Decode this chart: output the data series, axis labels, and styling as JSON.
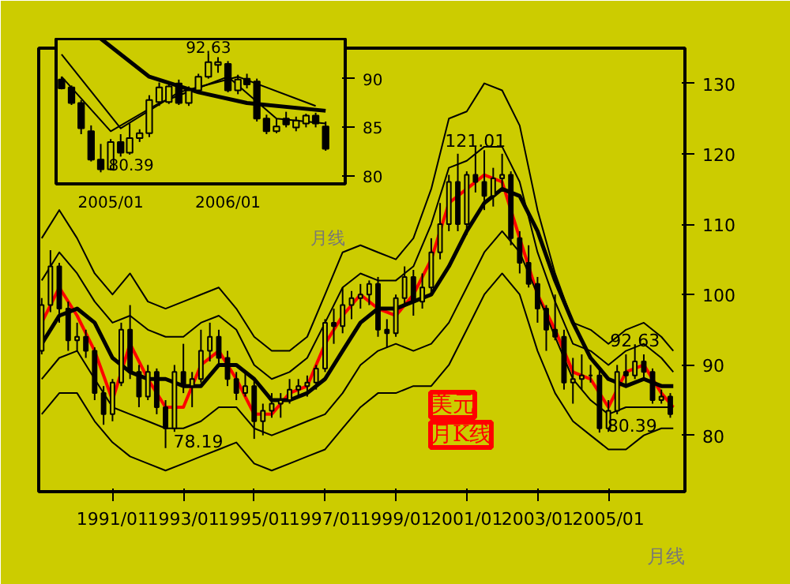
{
  "chart_data": [
    {
      "type": "candlestick",
      "x": [
        "2004-08",
        "2004-09",
        "2004-10",
        "2004-11",
        "2004-12",
        "2005-01",
        "2005-02",
        "2005-03",
        "2005-04",
        "2005-05",
        "2005-06",
        "2005-07",
        "2005-08",
        "2005-09",
        "2005-10",
        "2005-11",
        "2005-12",
        "2006-01",
        "2006-02",
        "2006-03",
        "2006-04",
        "2006-05",
        "2006-06",
        "2006-07",
        "2006-08",
        "2006-09",
        "2006-10",
        "2006-11"
      ],
      "ohlc": [
        [
          89.9,
          90.2,
          88.9,
          89.0
        ],
        [
          89.1,
          89.3,
          87.3,
          87.5
        ],
        [
          87.5,
          87.8,
          84.3,
          84.9
        ],
        [
          84.6,
          85.2,
          81.5,
          81.7
        ],
        [
          81.7,
          83.3,
          80.39,
          80.7
        ],
        [
          80.7,
          83.8,
          80.6,
          83.5
        ],
        [
          83.5,
          84.3,
          82.0,
          82.4
        ],
        [
          82.4,
          85.4,
          82.2,
          83.9
        ],
        [
          83.9,
          84.8,
          83.5,
          84.4
        ],
        [
          84.4,
          88.3,
          84.0,
          87.8
        ],
        [
          87.6,
          89.6,
          87.2,
          89.1
        ],
        [
          87.6,
          89.6,
          87.4,
          89.2
        ],
        [
          89.5,
          89.9,
          87.3,
          87.5
        ],
        [
          87.5,
          89.2,
          87.2,
          88.8
        ],
        [
          88.8,
          90.5,
          88.5,
          90.2
        ],
        [
          90.2,
          92.63,
          90.0,
          91.7
        ],
        [
          91.4,
          92.2,
          90.6,
          91.7
        ],
        [
          91.5,
          91.8,
          88.6,
          88.8
        ],
        [
          88.8,
          90.4,
          88.4,
          89.9
        ],
        [
          90.0,
          90.5,
          89.0,
          89.4
        ],
        [
          89.7,
          90.0,
          85.6,
          85.9
        ],
        [
          85.9,
          86.3,
          84.3,
          84.6
        ],
        [
          84.6,
          85.9,
          84.4,
          85.1
        ],
        [
          85.9,
          86.6,
          85.0,
          85.3
        ],
        [
          85.0,
          86.1,
          84.6,
          85.7
        ],
        [
          85.4,
          86.4,
          85.0,
          86.2
        ],
        [
          86.2,
          86.5,
          85.0,
          85.4
        ],
        [
          85.1,
          85.6,
          82.6,
          82.8
        ]
      ],
      "series": [
        {
          "type": "line",
          "color": "#000000",
          "x": [
            "2004-12",
            "2005-05",
            "2005-10",
            "2006-03",
            "2006-11"
          ],
          "values": [
            94.1,
            90.2,
            88.6,
            87.5,
            86.7
          ]
        },
        {
          "type": "line",
          "color": "#000000",
          "x": [
            "2004-08",
            "2005-02",
            "2005-08",
            "2006-02",
            "2006-10"
          ],
          "values": [
            92.5,
            84.9,
            88.6,
            90.2,
            87.2
          ]
        },
        {
          "type": "line",
          "color": "#000000",
          "x": [
            "2004-08",
            "2005-01",
            "2005-06",
            "2006-01",
            "2006-06",
            "2006-11"
          ],
          "values": [
            90.2,
            84.6,
            87.5,
            90.2,
            85.9,
            85.4
          ]
        }
      ],
      "xlim": [
        "2004-07-15",
        "2007-01"
      ],
      "ylim": [
        79.2,
        94.1
      ],
      "yticks": [
        80,
        85,
        90
      ],
      "xticks": [
        {
          "value": "2005-01",
          "label": "2005/01"
        },
        {
          "value": "2006-01",
          "label": "2006/01"
        }
      ],
      "annotations": [
        {
          "text": "92.63",
          "x": "2005-11",
          "y": 92.63
        },
        {
          "text": "80.39",
          "x": "2004-12",
          "y": 80.39
        },
        "月线"
      ],
      "grid": false
    },
    {
      "type": "candlestick",
      "x": [
        "1989-01",
        "1989-04",
        "1989-07",
        "1989-10",
        "1990-01",
        "1990-04",
        "1990-07",
        "1990-10",
        "1991-01",
        "1991-04",
        "1991-07",
        "1991-10",
        "1992-01",
        "1992-04",
        "1992-07",
        "1992-10",
        "1993-01",
        "1993-04",
        "1993-07",
        "1993-10",
        "1994-01",
        "1994-04",
        "1994-07",
        "1994-10",
        "1995-01",
        "1995-04",
        "1995-07",
        "1995-10",
        "1996-01",
        "1996-04",
        "1996-07",
        "1996-10",
        "1997-01",
        "1997-04",
        "1997-07",
        "1997-10",
        "1998-01",
        "1998-04",
        "1998-07",
        "1998-10",
        "1999-01",
        "1999-04",
        "1999-07",
        "1999-10",
        "2000-01",
        "2000-04",
        "2000-07",
        "2000-10",
        "2001-01",
        "2001-04",
        "2001-07",
        "2001-10",
        "2002-01",
        "2002-04",
        "2002-07",
        "2002-10",
        "2003-01",
        "2003-04",
        "2003-07",
        "2003-10",
        "2004-01",
        "2004-04",
        "2004-07",
        "2004-10",
        "2005-01",
        "2005-04",
        "2005-07",
        "2005-10",
        "2006-01",
        "2006-04",
        "2006-07",
        "2006-10"
      ],
      "ohlc": [
        [
          92.0,
          99.5,
          91.5,
          98.5
        ],
        [
          98.5,
          106.3,
          97.5,
          104.0
        ],
        [
          104.0,
          104.5,
          96.0,
          98.0
        ],
        [
          98.0,
          99.0,
          92.0,
          93.5
        ],
        [
          93.5,
          96.0,
          92.0,
          94.0
        ],
        [
          94.0,
          95.0,
          91.0,
          92.0
        ],
        [
          92.0,
          92.5,
          85.0,
          86.0
        ],
        [
          86.0,
          87.0,
          81.5,
          83.0
        ],
        [
          83.0,
          88.0,
          82.0,
          87.5
        ],
        [
          87.5,
          96.0,
          87.0,
          95.0
        ],
        [
          95.0,
          98.5,
          88.0,
          89.0
        ],
        [
          89.0,
          90.0,
          84.0,
          85.5
        ],
        [
          85.5,
          90.0,
          85.0,
          89.0
        ],
        [
          89.0,
          89.5,
          83.0,
          84.0
        ],
        [
          84.0,
          85.0,
          78.19,
          81.0
        ],
        [
          81.0,
          90.0,
          80.5,
          89.0
        ],
        [
          89.0,
          93.0,
          86.0,
          87.0
        ],
        [
          87.0,
          89.0,
          84.0,
          88.0
        ],
        [
          88.0,
          95.0,
          87.5,
          92.0
        ],
        [
          92.0,
          96.0,
          90.5,
          94.0
        ],
        [
          94.0,
          95.0,
          90.0,
          91.0
        ],
        [
          91.0,
          92.0,
          87.0,
          88.0
        ],
        [
          88.0,
          89.0,
          85.0,
          86.0
        ],
        [
          86.0,
          89.0,
          85.5,
          87.0
        ],
        [
          87.0,
          88.0,
          79.5,
          82.0
        ],
        [
          82.0,
          84.5,
          80.0,
          83.5
        ],
        [
          83.5,
          86.0,
          82.5,
          84.5
        ],
        [
          84.5,
          86.0,
          82.5,
          85.0
        ],
        [
          85.0,
          88.0,
          84.5,
          86.5
        ],
        [
          86.5,
          88.0,
          85.5,
          87.0
        ],
        [
          87.0,
          88.5,
          85.5,
          87.5
        ],
        [
          87.5,
          90.0,
          86.5,
          89.5
        ],
        [
          89.5,
          96.5,
          89.0,
          96.0
        ],
        [
          96.0,
          98.0,
          93.0,
          95.5
        ],
        [
          95.5,
          101.0,
          94.5,
          98.5
        ],
        [
          98.5,
          100.5,
          96.5,
          99.5
        ],
        [
          99.5,
          101.5,
          98.0,
          100.0
        ],
        [
          100.0,
          102.0,
          98.5,
          101.5
        ],
        [
          101.5,
          102.5,
          94.0,
          95.0
        ],
        [
          95.0,
          96.5,
          92.5,
          94.5
        ],
        [
          94.5,
          100.0,
          94.0,
          99.5
        ],
        [
          99.5,
          104.0,
          98.5,
          102.5
        ],
        [
          102.5,
          103.5,
          97.0,
          99.0
        ],
        [
          99.0,
          103.0,
          98.0,
          101.0
        ],
        [
          101.0,
          108.0,
          100.0,
          106.0
        ],
        [
          106.0,
          113.0,
          105.0,
          110.0
        ],
        [
          110.0,
          117.0,
          109.0,
          116.0
        ],
        [
          116.0,
          120.0,
          109.0,
          110.0
        ],
        [
          110.0,
          117.5,
          108.5,
          117.0
        ],
        [
          117.0,
          121.01,
          114.5,
          116.0
        ],
        [
          116.0,
          120.5,
          112.0,
          114.0
        ],
        [
          114.0,
          118.0,
          112.5,
          116.5
        ],
        [
          116.5,
          120.0,
          115.0,
          117.0
        ],
        [
          117.0,
          117.5,
          107.0,
          108.0
        ],
        [
          108.0,
          109.0,
          103.0,
          104.5
        ],
        [
          104.5,
          107.0,
          101.0,
          101.5
        ],
        [
          101.5,
          102.5,
          96.0,
          98.0
        ],
        [
          98.0,
          98.5,
          92.0,
          95.0
        ],
        [
          95.0,
          100.0,
          93.5,
          94.0
        ],
        [
          94.0,
          95.0,
          86.5,
          87.5
        ],
        [
          87.5,
          91.0,
          84.5,
          88.0
        ],
        [
          88.0,
          91.5,
          86.5,
          88.5
        ],
        [
          88.5,
          90.0,
          87.5,
          88.5
        ],
        [
          88.5,
          89.5,
          80.39,
          81.0
        ],
        [
          81.0,
          85.0,
          80.5,
          83.5
        ],
        [
          83.5,
          90.0,
          83.0,
          89.0
        ],
        [
          89.0,
          91.5,
          87.0,
          88.5
        ],
        [
          88.5,
          92.63,
          88.0,
          90.5
        ],
        [
          90.5,
          91.5,
          88.0,
          89.0
        ],
        [
          89.0,
          89.5,
          84.5,
          85.0
        ],
        [
          85.0,
          86.5,
          84.5,
          85.5
        ],
        [
          85.5,
          86.0,
          82.5,
          83.0
        ]
      ],
      "series": [
        {
          "type": "line",
          "color": "#ff0000",
          "x": [
            "1989-01",
            "1989-07",
            "1990-01",
            "1990-07",
            "1991-01",
            "1991-07",
            "1992-01",
            "1992-07",
            "1993-01",
            "1993-07",
            "1994-01",
            "1994-07",
            "1995-01",
            "1995-07",
            "1996-01",
            "1996-07",
            "1997-01",
            "1997-07",
            "1998-01",
            "1998-07",
            "1999-01",
            "1999-07",
            "2000-01",
            "2000-07",
            "2001-01",
            "2001-07",
            "2002-01",
            "2002-07",
            "2003-01",
            "2003-07",
            "2004-01",
            "2004-07",
            "2005-01",
            "2005-07",
            "2006-01",
            "2006-07",
            "2006-11"
          ],
          "values": [
            96,
            101,
            97,
            92,
            85,
            93,
            88,
            84,
            84,
            90,
            92,
            88,
            83,
            83,
            86,
            87,
            93,
            97,
            100,
            98,
            97,
            100,
            105,
            113,
            115,
            117,
            116,
            108,
            100,
            95,
            89,
            88,
            84,
            89,
            90,
            86,
            84
          ]
        },
        {
          "type": "line",
          "color": "#000000",
          "x": [
            "1989-01",
            "1989-07",
            "1990-01",
            "1990-07",
            "1991-01",
            "1991-07",
            "1992-01",
            "1992-07",
            "1993-01",
            "1993-07",
            "1994-01",
            "1994-07",
            "1995-01",
            "1995-07",
            "1996-01",
            "1996-07",
            "1997-01",
            "1997-07",
            "1998-01",
            "1998-07",
            "1999-01",
            "1999-07",
            "2000-01",
            "2000-07",
            "2001-01",
            "2001-07",
            "2002-01",
            "2002-07",
            "2003-01",
            "2003-07",
            "2004-01",
            "2004-07",
            "2005-01",
            "2005-07",
            "2006-01",
            "2006-07",
            "2006-11"
          ],
          "values": [
            93,
            97,
            98,
            96,
            91,
            89,
            88,
            88,
            87,
            87,
            90,
            90,
            88,
            85,
            85,
            86,
            88,
            92,
            96,
            98,
            98,
            99,
            100,
            104,
            109,
            113,
            115,
            114,
            109,
            102,
            96,
            91,
            88,
            87,
            88,
            87,
            87
          ]
        },
        {
          "type": "line",
          "color": "#000000",
          "x": [
            "1989-01",
            "1989-07",
            "1990-01",
            "1990-07",
            "1991-01",
            "1991-07",
            "1992-01",
            "1992-07",
            "1993-01",
            "1993-07",
            "1994-01",
            "1994-07",
            "1995-01",
            "1995-07",
            "1996-01",
            "1996-07",
            "1997-01",
            "1997-07",
            "1998-01",
            "1998-07",
            "1999-01",
            "1999-07",
            "2000-01",
            "2000-07",
            "2001-01",
            "2001-07",
            "2002-01",
            "2002-07",
            "2003-01",
            "2003-07",
            "2004-01",
            "2004-07",
            "2005-01",
            "2005-07",
            "2006-01",
            "2006-07",
            "2006-11"
          ],
          "values": [
            108,
            112,
            108,
            103,
            100,
            103,
            99,
            98,
            99,
            100,
            101,
            98,
            94,
            92,
            92,
            94,
            100,
            106,
            107,
            106,
            105,
            108,
            115,
            125,
            126,
            130,
            129,
            124,
            112,
            103,
            96,
            95,
            93,
            95,
            96,
            94,
            92
          ]
        },
        {
          "type": "line",
          "color": "#000000",
          "x": [
            "1989-01",
            "1989-07",
            "1990-01",
            "1990-07",
            "1991-01",
            "1991-07",
            "1992-01",
            "1992-07",
            "1993-01",
            "1993-07",
            "1994-01",
            "1994-07",
            "1995-01",
            "1995-07",
            "1996-01",
            "1996-07",
            "1997-01",
            "1997-07",
            "1998-01",
            "1998-07",
            "1999-01",
            "1999-07",
            "2000-01",
            "2000-07",
            "2001-01",
            "2001-07",
            "2002-01",
            "2002-07",
            "2003-01",
            "2003-07",
            "2004-01",
            "2004-07",
            "2005-01",
            "2005-07",
            "2006-01",
            "2006-07",
            "2006-11"
          ],
          "values": [
            102,
            106,
            103,
            99,
            96,
            97,
            95,
            94,
            94,
            96,
            97,
            95,
            90,
            88,
            89,
            91,
            96,
            101,
            103,
            102,
            102,
            104,
            110,
            118,
            119,
            121,
            121,
            116,
            106,
            99,
            93,
            92,
            90,
            92,
            93,
            91,
            89
          ]
        },
        {
          "type": "line",
          "color": "#000000",
          "x": [
            "1989-01",
            "1989-07",
            "1990-01",
            "1990-07",
            "1991-01",
            "1991-07",
            "1992-01",
            "1992-07",
            "1993-01",
            "1993-07",
            "1994-01",
            "1994-07",
            "1995-01",
            "1995-07",
            "1996-01",
            "1996-07",
            "1997-01",
            "1997-07",
            "1998-01",
            "1998-07",
            "1999-01",
            "1999-07",
            "2000-01",
            "2000-07",
            "2001-01",
            "2001-07",
            "2002-01",
            "2002-07",
            "2003-01",
            "2003-07",
            "2004-01",
            "2004-07",
            "2005-01",
            "2005-07",
            "2006-01",
            "2006-07",
            "2006-11"
          ],
          "values": [
            88,
            91,
            92,
            88,
            84,
            83,
            82,
            81,
            81,
            82,
            84,
            84,
            81,
            80,
            81,
            82,
            83,
            86,
            90,
            92,
            93,
            92,
            93,
            96,
            101,
            106,
            109,
            106,
            100,
            94,
            88,
            85,
            83,
            84,
            84,
            84,
            84
          ]
        },
        {
          "type": "line",
          "color": "#000000",
          "x": [
            "1989-01",
            "1989-07",
            "1990-01",
            "1990-07",
            "1991-01",
            "1991-07",
            "1992-01",
            "1992-07",
            "1993-01",
            "1993-07",
            "1994-01",
            "1994-07",
            "1995-01",
            "1995-07",
            "1996-01",
            "1996-07",
            "1997-01",
            "1997-07",
            "1998-01",
            "1998-07",
            "1999-01",
            "1999-07",
            "2000-01",
            "2000-07",
            "2001-01",
            "2001-07",
            "2002-01",
            "2002-07",
            "2003-01",
            "2003-07",
            "2004-01",
            "2004-07",
            "2005-01",
            "2005-07",
            "2006-01",
            "2006-07",
            "2006-11"
          ],
          "values": [
            83,
            86,
            86,
            82,
            79,
            77,
            76,
            75,
            76,
            77,
            78,
            79,
            76,
            75,
            76,
            77,
            78,
            81,
            84,
            86,
            86,
            87,
            87,
            90,
            95,
            100,
            103,
            100,
            92,
            86,
            82,
            80,
            78,
            78,
            80,
            81,
            81
          ]
        }
      ],
      "xlim": [
        "1988-12",
        "2007-03"
      ],
      "ylim": [
        72,
        135
      ],
      "yticks": [
        80,
        90,
        100,
        110,
        120,
        130
      ],
      "xticks": [
        {
          "value": "1991-01",
          "label": "1991/01"
        },
        {
          "value": "1993-01",
          "label": "1993/01"
        },
        {
          "value": "1995-01",
          "label": "1995/01"
        },
        {
          "value": "1997-01",
          "label": "1997/01"
        },
        {
          "value": "1999-01",
          "label": "1999/01"
        },
        {
          "value": "2001-01",
          "label": "2001/01"
        },
        {
          "value": "2003-01",
          "label": "2003/01"
        },
        {
          "value": "2005-01",
          "label": "2005/01"
        }
      ],
      "annotations": [
        {
          "text": "121.01",
          "x": "2001-04",
          "y": 121.01
        },
        {
          "text": "78.19",
          "x": "1992-07",
          "y": 78.19
        },
        {
          "text": "92.63",
          "x": "2005-10",
          "y": 92.63
        },
        {
          "text": "80.39",
          "x": "2004-10",
          "y": 80.39
        },
        "月线",
        "美元月K线"
      ],
      "grid": false
    }
  ]
}
